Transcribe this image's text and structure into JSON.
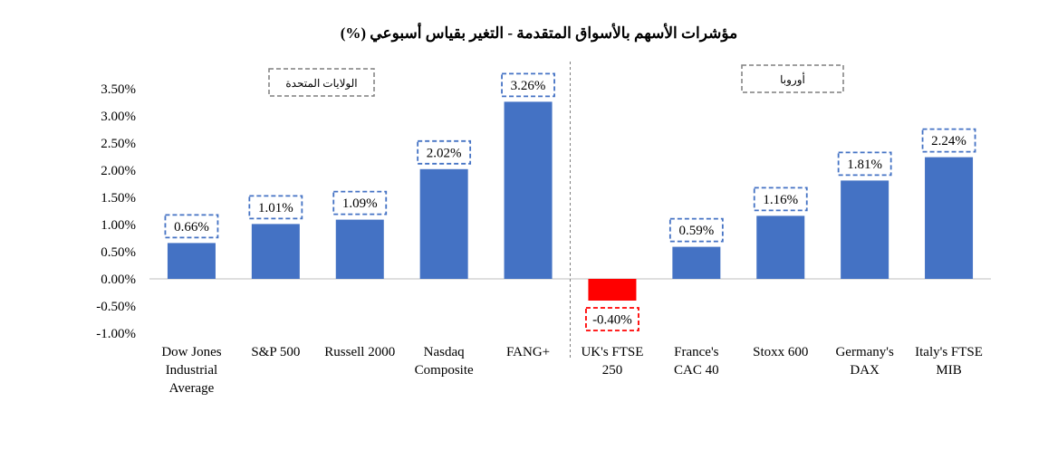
{
  "chart_data": {
    "type": "bar",
    "title": "مؤشرات الأسهم بالأسواق المتقدمة - التغير بقياس أسبوعي (%)",
    "categories": [
      [
        "Dow Jones",
        "Industrial",
        "Average"
      ],
      [
        "S&P 500"
      ],
      [
        "Russell 2000"
      ],
      [
        "Nasdaq",
        "Composite"
      ],
      [
        "FANG+"
      ],
      [
        "UK's FTSE",
        "250"
      ],
      [
        "France's",
        "CAC 40"
      ],
      [
        "Stoxx 600"
      ],
      [
        "Germany's",
        "DAX"
      ],
      [
        "Italy's FTSE",
        "MIB"
      ]
    ],
    "values": [
      0.66,
      1.01,
      1.09,
      2.02,
      3.26,
      -0.4,
      0.59,
      1.16,
      1.81,
      2.24
    ],
    "data_labels": [
      "0.66%",
      "1.01%",
      "1.09%",
      "2.02%",
      "3.26%",
      "-0.40%",
      "0.59%",
      "1.16%",
      "1.81%",
      "2.24%"
    ],
    "y_ticks": [
      "3.50%",
      "3.00%",
      "2.50%",
      "2.00%",
      "1.50%",
      "1.00%",
      "0.50%",
      "0.00%",
      "-0.50%",
      "-1.00%"
    ],
    "y_tick_values": [
      3.5,
      3.0,
      2.5,
      2.0,
      1.5,
      1.0,
      0.5,
      0.0,
      -0.5,
      -1.0
    ],
    "ylim": [
      -1.0,
      3.5
    ],
    "regions": [
      {
        "label": "الولايات المتحدة",
        "categories": [
          0,
          1,
          2,
          3,
          4
        ]
      },
      {
        "label": "أوروبا",
        "categories": [
          5,
          6,
          7,
          8,
          9
        ]
      }
    ],
    "colors": {
      "positive": "#4472C4",
      "negative": "#FF0000",
      "label_border_positive": "#4472C4",
      "label_border_negative": "#FF0000",
      "region_border": "#7F7F7F",
      "axis": "#BFBFBF",
      "divider": "#7F7F7F"
    },
    "grid": false,
    "legend": "none"
  }
}
